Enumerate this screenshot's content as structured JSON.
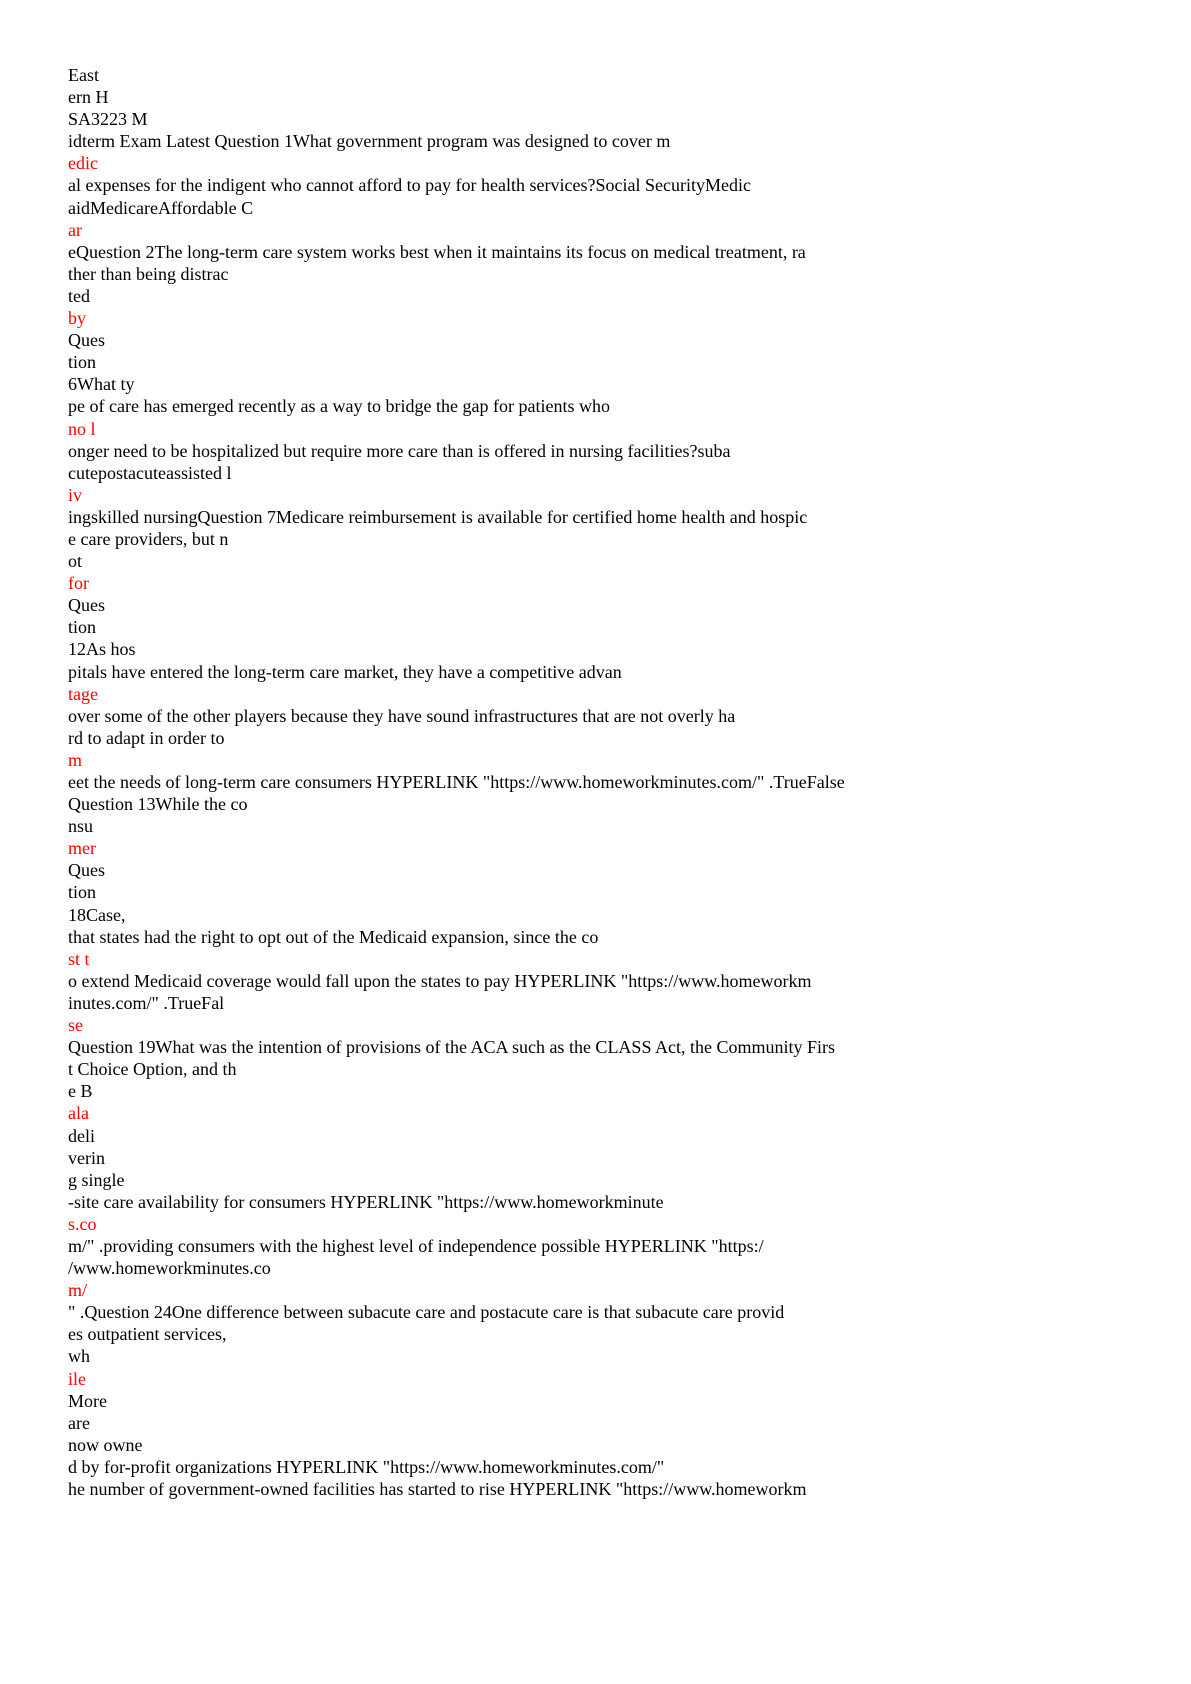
{
  "colors": {
    "text": "#000000",
    "highlight": "#ff0000",
    "background": "#ffffff"
  },
  "document": {
    "lines": [
      {
        "text": "East",
        "red": false
      },
      {
        "text": "ern H",
        "red": false
      },
      {
        "text": "SA3223 M",
        "red": false
      },
      {
        "text": "idterm Exam Latest Question 1What government program was designed to cover m",
        "red": false
      },
      {
        "text": "edic",
        "red": true
      },
      {
        "text": "al expenses for the indigent who cannot afford to pay for health services?Social SecurityMedic",
        "red": false
      },
      {
        "text": "aidMedicareAffordable C",
        "red": false
      },
      {
        "text": "ar",
        "red": true
      },
      {
        "text": "eQuestion 2The long-term care system works best when it maintains its focus on medical treatment, ra",
        "red": false
      },
      {
        "text": "ther than being distrac",
        "red": false
      },
      {
        "text": "ted",
        "red": false
      },
      {
        "text": "by",
        "red": true
      },
      {
        "text": "Ques",
        "red": false
      },
      {
        "text": "tion",
        "red": false
      },
      {
        "text": "6What ty",
        "red": false
      },
      {
        "text": "pe of care has emerged recently as a way to bridge the gap for patients who",
        "red": false
      },
      {
        "text": "no l",
        "red": true
      },
      {
        "text": "onger need to be hospitalized but require more care than is offered in nursing facilities?suba",
        "red": false
      },
      {
        "text": "cutepostacuteassisted l",
        "red": false
      },
      {
        "text": "iv",
        "red": true
      },
      {
        "text": "ingskilled nursingQuestion 7Medicare reimbursement is available for certified home health and hospic",
        "red": false
      },
      {
        "text": "e care providers, but n",
        "red": false
      },
      {
        "text": "ot",
        "red": false
      },
      {
        "text": "for",
        "red": true
      },
      {
        "text": "Ques",
        "red": false
      },
      {
        "text": "tion",
        "red": false
      },
      {
        "text": "12As hos",
        "red": false
      },
      {
        "text": "pitals have entered the long-term care market, they have a competitive advan",
        "red": false
      },
      {
        "text": "tage",
        "red": true
      },
      {
        "text": "over some of the other players because they have sound infrastructures that are not overly ha",
        "red": false
      },
      {
        "text": "rd to adapt in order to",
        "red": false
      },
      {
        "text": "m",
        "red": true
      },
      {
        "text": "eet the needs of long-term care consumers HYPERLINK \"https://www.homeworkminutes.com/\" .TrueFalse",
        "red": false
      },
      {
        "text": "Question 13While the co",
        "red": false
      },
      {
        "text": "nsu",
        "red": false
      },
      {
        "text": "mer",
        "red": true
      },
      {
        "text": "Ques",
        "red": false
      },
      {
        "text": "tion",
        "red": false
      },
      {
        "text": "18Case,",
        "red": false
      },
      {
        "text": "that states had the right to opt out of the Medicaid expansion, since the co",
        "red": false
      },
      {
        "text": "st t",
        "red": true
      },
      {
        "text": "o extend Medicaid coverage would fall upon the states to pay HYPERLINK \"https://www.homeworkm",
        "red": false
      },
      {
        "text": "inutes.com/\" .TrueFal",
        "red": false
      },
      {
        "text": "se",
        "red": true
      },
      {
        "text": "Question 19What was the intention of provisions of the ACA such as the CLASS Act, the Community Firs",
        "red": false
      },
      {
        "text": "t Choice Option, and th",
        "red": false
      },
      {
        "text": "e B",
        "red": false
      },
      {
        "text": "ala",
        "red": true
      },
      {
        "text": "deli",
        "red": false
      },
      {
        "text": "verin",
        "red": false
      },
      {
        "text": "g single",
        "red": false
      },
      {
        "text": "-site care availability for consumers HYPERLINK \"https://www.homeworkminute",
        "red": false
      },
      {
        "text": "s.co",
        "red": true
      },
      {
        "text": "m/\" .providing consumers with the highest level of independence possible HYPERLINK \"https:/",
        "red": false
      },
      {
        "text": "/www.homeworkminutes.co",
        "red": false
      },
      {
        "text": "m/",
        "red": true
      },
      {
        "text": "\" .Question 24One difference between subacute care and postacute care is that subacute care provid",
        "red": false
      },
      {
        "text": "es outpatient services,",
        "red": false
      },
      {
        "text": "wh",
        "red": false
      },
      {
        "text": "ile",
        "red": true
      },
      {
        "text": "More",
        "red": false
      },
      {
        "text": "are",
        "red": false
      },
      {
        "text": "now owne",
        "red": false
      },
      {
        "text": "d by for-profit organizations HYPERLINK \"https://www.homeworkminutes.com/\"",
        "red": false
      },
      {
        "text": "he number of government-owned facilities has started to rise HYPERLINK \"https://www.homeworkm",
        "red": false
      }
    ]
  }
}
